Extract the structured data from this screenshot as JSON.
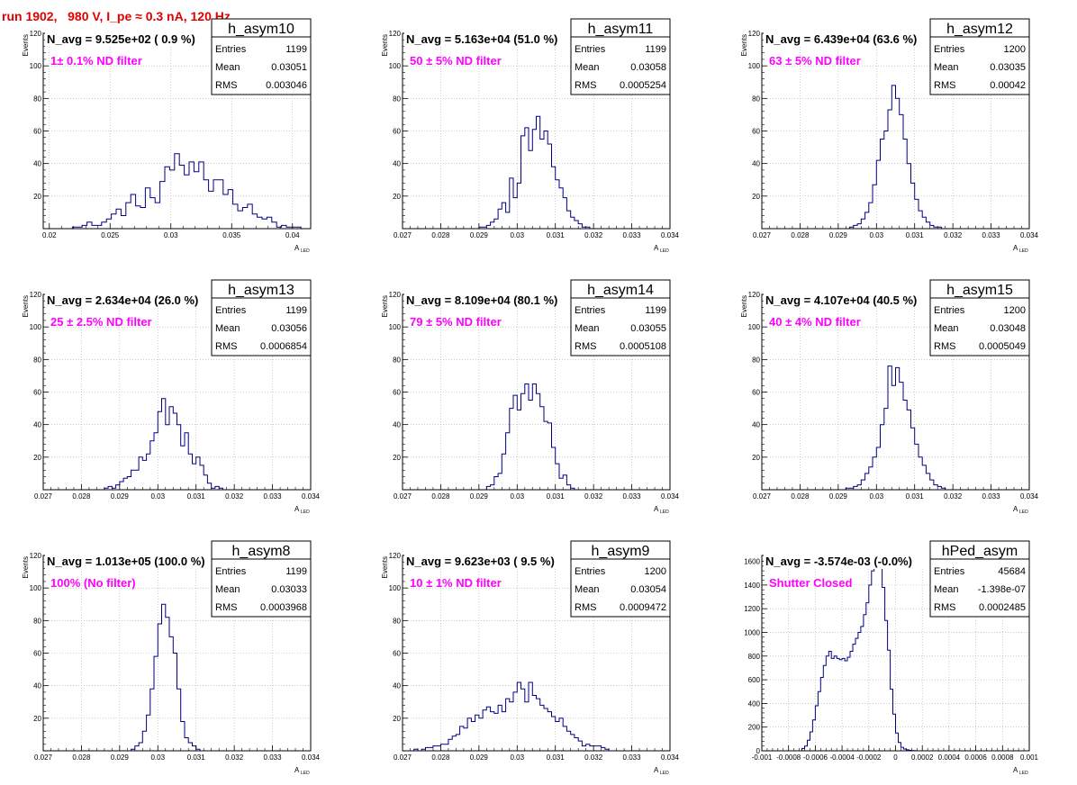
{
  "page_title": "run 1902,   980 V, I_pe ≈ 0.3 nA, 120 Hz",
  "colors": {
    "hist": "#000080",
    "grid": "#aaaaaa",
    "annot": "#ff00ff",
    "title": "#e00000"
  },
  "chart_data": [
    {
      "type": "bar",
      "name": "h_asym10",
      "stats": {
        "Entries": "1199",
        "Mean": "0.03051",
        "RMS": "0.003046"
      },
      "navg": "N_avg = 9.525e+02 ( 0.9 %)",
      "annotation": "1± 0.1% ND filter",
      "xlabel": "A",
      "xlabel_sub": "LED",
      "ylabel": "Events",
      "xlim": [
        0.0195,
        0.0415
      ],
      "ylim": [
        0,
        120
      ],
      "xticks": [
        0.02,
        0.025,
        0.03,
        0.035,
        0.04
      ],
      "xtick_labels": [
        "0.02",
        "0.025",
        "0.03",
        "0.035",
        "0.04"
      ],
      "yticks": [
        0,
        20,
        40,
        60,
        80,
        100,
        120
      ],
      "ytick_labels": [
        "",
        "20",
        "40",
        "60",
        "80",
        "100",
        "120"
      ],
      "x0": 0.0195,
      "dx": 0.0004,
      "values": [
        0,
        0,
        0,
        0,
        0,
        0,
        1,
        1,
        2,
        4,
        2,
        2,
        4,
        6,
        9,
        12,
        8,
        16,
        21,
        14,
        13,
        25,
        19,
        16,
        29,
        38,
        36,
        46,
        39,
        33,
        41,
        35,
        41,
        30,
        23,
        30,
        30,
        21,
        24,
        15,
        11,
        13,
        15,
        9,
        7,
        6,
        7,
        4,
        1,
        2,
        1,
        1,
        1,
        0,
        0
      ]
    },
    {
      "type": "bar",
      "name": "h_asym11",
      "stats": {
        "Entries": "1199",
        "Mean": "0.03058",
        "RMS": "0.0005254"
      },
      "navg": "N_avg = 5.163e+04 (51.0 %)",
      "annotation": "50 ± 5% ND filter",
      "xlabel": "A",
      "xlabel_sub": "LED",
      "ylabel": "Events",
      "xlim": [
        0.027,
        0.034
      ],
      "ylim": [
        0,
        120
      ],
      "xticks": [
        0.027,
        0.028,
        0.029,
        0.03,
        0.031,
        0.032,
        0.033,
        0.034
      ],
      "xtick_labels": [
        "0.027",
        "0.028",
        "0.029",
        "0.03",
        "0.031",
        "0.032",
        "0.033",
        "0.034"
      ],
      "yticks": [
        0,
        20,
        40,
        60,
        80,
        100,
        120
      ],
      "ytick_labels": [
        "",
        "20",
        "40",
        "60",
        "80",
        "100",
        "120"
      ],
      "x0": 0.029,
      "dx": 0.0001,
      "values": [
        1,
        1,
        2,
        4,
        6,
        12,
        16,
        10,
        31,
        19,
        28,
        57,
        62,
        48,
        61,
        69,
        55,
        60,
        52,
        38,
        30,
        25,
        19,
        11,
        7,
        5,
        3,
        1,
        1,
        0
      ]
    },
    {
      "type": "bar",
      "name": "h_asym12",
      "stats": {
        "Entries": "1200",
        "Mean": "0.03035",
        "RMS": "0.00042"
      },
      "navg": "N_avg = 6.439e+04 (63.6 %)",
      "annotation": "63 ± 5% ND filter",
      "xlabel": "A",
      "xlabel_sub": "LED",
      "ylabel": "Events",
      "xlim": [
        0.027,
        0.034
      ],
      "ylim": [
        0,
        120
      ],
      "xticks": [
        0.027,
        0.028,
        0.029,
        0.03,
        0.031,
        0.032,
        0.033,
        0.034
      ],
      "xtick_labels": [
        "0.027",
        "0.028",
        "0.029",
        "0.03",
        "0.031",
        "0.032",
        "0.033",
        "0.034"
      ],
      "yticks": [
        0,
        20,
        40,
        60,
        80,
        100,
        120
      ],
      "ytick_labels": [
        "",
        "20",
        "40",
        "60",
        "80",
        "100",
        "120"
      ],
      "x0": 0.0293,
      "dx": 0.0001,
      "values": [
        1,
        2,
        3,
        6,
        10,
        16,
        27,
        42,
        55,
        60,
        73,
        88,
        80,
        70,
        55,
        40,
        28,
        18,
        11,
        7,
        4,
        2,
        1,
        1,
        0
      ]
    },
    {
      "type": "bar",
      "name": "h_asym13",
      "stats": {
        "Entries": "1199",
        "Mean": "0.03056",
        "RMS": "0.0006854"
      },
      "navg": "N_avg = 2.634e+04 (26.0 %)",
      "annotation": "25 ± 2.5% ND filter",
      "xlabel": "A",
      "xlabel_sub": "LED",
      "ylabel": "Events",
      "xlim": [
        0.027,
        0.034
      ],
      "ylim": [
        0,
        120
      ],
      "xticks": [
        0.027,
        0.028,
        0.029,
        0.03,
        0.031,
        0.032,
        0.033,
        0.034
      ],
      "xtick_labels": [
        "0.027",
        "0.028",
        "0.029",
        "0.03",
        "0.031",
        "0.032",
        "0.033",
        "0.034"
      ],
      "yticks": [
        0,
        20,
        40,
        60,
        80,
        100,
        120
      ],
      "ytick_labels": [
        "",
        "20",
        "40",
        "60",
        "80",
        "100",
        "120"
      ],
      "x0": 0.0286,
      "dx": 0.0001,
      "values": [
        1,
        2,
        1,
        3,
        5,
        7,
        8,
        12,
        12,
        20,
        18,
        22,
        30,
        35,
        48,
        56,
        40,
        51,
        47,
        40,
        27,
        35,
        22,
        16,
        20,
        15,
        9,
        4,
        1,
        2,
        1,
        0
      ]
    },
    {
      "type": "bar",
      "name": "h_asym14",
      "stats": {
        "Entries": "1199",
        "Mean": "0.03055",
        "RMS": "0.0005108"
      },
      "navg": "N_avg = 8.109e+04 (80.1 %)",
      "annotation": "79 ± 5% ND filter",
      "xlabel": "A",
      "xlabel_sub": "LED",
      "ylabel": "Events",
      "xlim": [
        0.027,
        0.034
      ],
      "ylim": [
        0,
        120
      ],
      "xticks": [
        0.027,
        0.028,
        0.029,
        0.03,
        0.031,
        0.032,
        0.033,
        0.034
      ],
      "xtick_labels": [
        "0.027",
        "0.028",
        "0.029",
        "0.03",
        "0.031",
        "0.032",
        "0.033",
        "0.034"
      ],
      "yticks": [
        0,
        20,
        40,
        60,
        80,
        100,
        120
      ],
      "ytick_labels": [
        "",
        "20",
        "40",
        "60",
        "80",
        "100",
        "120"
      ],
      "x0": 0.0292,
      "dx": 0.0001,
      "values": [
        2,
        3,
        8,
        10,
        22,
        35,
        50,
        58,
        49,
        59,
        65,
        55,
        65,
        59,
        51,
        42,
        41,
        26,
        16,
        7,
        9,
        3,
        1,
        0
      ]
    },
    {
      "type": "bar",
      "name": "h_asym15",
      "stats": {
        "Entries": "1200",
        "Mean": "0.03048",
        "RMS": "0.0005049"
      },
      "navg": "N_avg = 4.107e+04 (40.5 %)",
      "annotation": "40 ± 4% ND filter",
      "xlabel": "A",
      "xlabel_sub": "LED",
      "ylabel": "Events",
      "xlim": [
        0.027,
        0.034
      ],
      "ylim": [
        0,
        120
      ],
      "xticks": [
        0.027,
        0.028,
        0.029,
        0.03,
        0.031,
        0.032,
        0.033,
        0.034
      ],
      "xtick_labels": [
        "0.027",
        "0.028",
        "0.029",
        "0.03",
        "0.031",
        "0.032",
        "0.033",
        "0.034"
      ],
      "yticks": [
        0,
        20,
        40,
        60,
        80,
        100,
        120
      ],
      "ytick_labels": [
        "",
        "20",
        "40",
        "60",
        "80",
        "100",
        "120"
      ],
      "x0": 0.0292,
      "dx": 0.0001,
      "values": [
        1,
        1,
        2,
        3,
        6,
        10,
        14,
        20,
        26,
        40,
        50,
        76,
        64,
        75,
        66,
        55,
        49,
        38,
        28,
        20,
        15,
        10,
        6,
        3,
        2,
        1,
        0
      ]
    },
    {
      "type": "bar",
      "name": "h_asym8",
      "stats": {
        "Entries": "1199",
        "Mean": "0.03033",
        "RMS": "0.0003968"
      },
      "navg": "N_avg = 1.013e+05 (100.0 %)",
      "annotation": "100% (No filter)",
      "xlabel": "A",
      "xlabel_sub": "LED",
      "ylabel": "Events",
      "xlim": [
        0.027,
        0.034
      ],
      "ylim": [
        0,
        120
      ],
      "xticks": [
        0.027,
        0.028,
        0.029,
        0.03,
        0.031,
        0.032,
        0.033,
        0.034
      ],
      "xtick_labels": [
        "0.027",
        "0.028",
        "0.029",
        "0.03",
        "0.031",
        "0.032",
        "0.033",
        "0.034"
      ],
      "yticks": [
        0,
        20,
        40,
        60,
        80,
        100,
        120
      ],
      "ytick_labels": [
        "",
        "20",
        "40",
        "60",
        "80",
        "100",
        "120"
      ],
      "x0": 0.0293,
      "dx": 0.0001,
      "values": [
        1,
        3,
        5,
        12,
        22,
        38,
        58,
        78,
        90,
        82,
        70,
        60,
        38,
        18,
        8,
        5,
        3,
        1,
        0
      ]
    },
    {
      "type": "bar",
      "name": "h_asym9",
      "stats": {
        "Entries": "1200",
        "Mean": "0.03054",
        "RMS": "0.0009472"
      },
      "navg": "N_avg = 9.623e+03 ( 9.5 %)",
      "annotation": "10 ± 1% ND filter",
      "xlabel": "A",
      "xlabel_sub": "LED",
      "ylabel": "Events",
      "xlim": [
        0.027,
        0.034
      ],
      "ylim": [
        0,
        120
      ],
      "xticks": [
        0.027,
        0.028,
        0.029,
        0.03,
        0.031,
        0.032,
        0.033,
        0.034
      ],
      "xtick_labels": [
        "0.027",
        "0.028",
        "0.029",
        "0.03",
        "0.031",
        "0.032",
        "0.033",
        "0.034"
      ],
      "yticks": [
        0,
        20,
        40,
        60,
        80,
        100,
        120
      ],
      "ytick_labels": [
        "",
        "20",
        "40",
        "60",
        "80",
        "100",
        "120"
      ],
      "x0": 0.0273,
      "dx": 0.0001,
      "values": [
        1,
        0,
        1,
        2,
        2,
        3,
        3,
        4,
        4,
        7,
        9,
        10,
        15,
        14,
        20,
        18,
        22,
        20,
        25,
        27,
        24,
        23,
        28,
        24,
        32,
        30,
        36,
        42,
        38,
        30,
        42,
        34,
        32,
        28,
        26,
        24,
        21,
        18,
        20,
        15,
        12,
        10,
        8,
        6,
        3,
        4,
        3,
        3,
        3,
        2,
        1,
        0
      ]
    },
    {
      "type": "bar",
      "name": "hPed_asym",
      "stats": {
        "Entries": "45684",
        "Mean": "-1.398e-07",
        "RMS": "0.0002485"
      },
      "navg": "N_avg = -3.574e-03 (-0.0%)",
      "annotation": "Shutter Closed",
      "xlabel": "A",
      "xlabel_sub": "LED",
      "ylabel": "",
      "xlim": [
        -0.001,
        0.001
      ],
      "ylim": [
        0,
        1650
      ],
      "xticks": [
        -0.001,
        -0.0008,
        -0.0006,
        -0.0004,
        -0.0002,
        0,
        0.0002,
        0.0004,
        0.0006,
        0.0008,
        0.001
      ],
      "xtick_labels": [
        "-0.001",
        "-0.0008",
        "-0.0006",
        "-0.0004",
        "-0.0002",
        "0",
        "0.0002",
        "0.0004",
        "0.0006",
        "0.0008",
        "0.001"
      ],
      "yticks": [
        0,
        200,
        400,
        600,
        800,
        1000,
        1200,
        1400,
        1600
      ],
      "ytick_labels": [
        "0",
        "200",
        "400",
        "600",
        "800",
        "1000",
        "1200",
        "1400",
        "1600"
      ],
      "x0": -0.0007,
      "dx": 2e-05,
      "values": [
        20,
        40,
        90,
        160,
        260,
        380,
        500,
        620,
        720,
        800,
        840,
        780,
        800,
        780,
        770,
        780,
        760,
        790,
        840,
        900,
        950,
        1000,
        1050,
        1150,
        1250,
        1400,
        1520,
        1600,
        1600,
        1550,
        1380,
        1100,
        850,
        520,
        310,
        150,
        70,
        30,
        15,
        8,
        4,
        2,
        1,
        0
      ]
    }
  ]
}
